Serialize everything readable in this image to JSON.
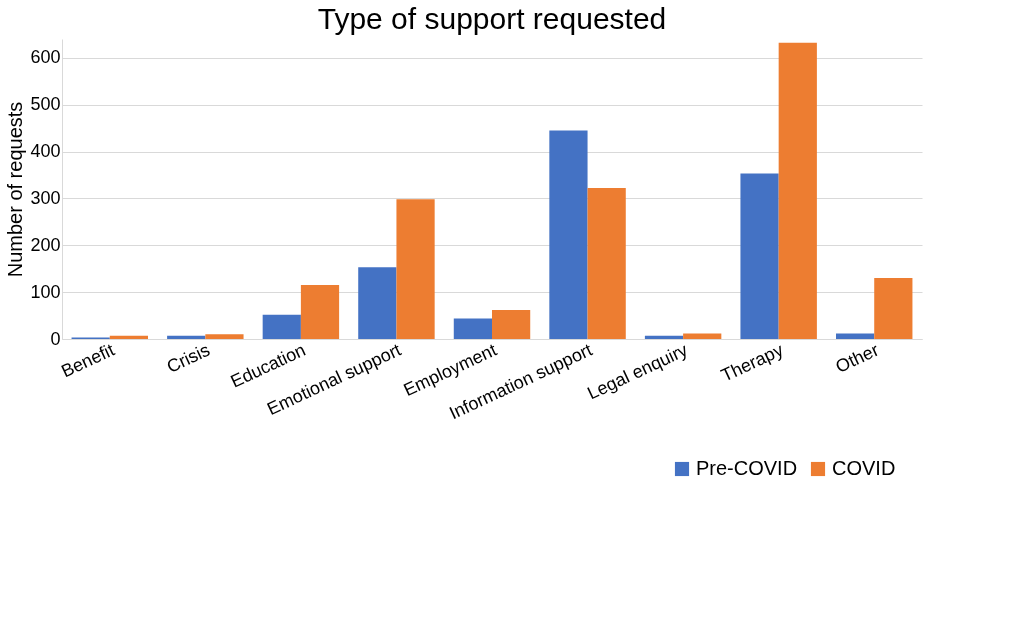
{
  "chart_data": {
    "type": "bar",
    "title": "Type of support requested",
    "ylabel": "Number of requests",
    "categories": [
      "Benefit",
      "Crisis",
      "Education",
      "Emotional support",
      "Employment",
      "Information support",
      "Legal enquiry",
      "Therapy",
      "Other"
    ],
    "series": [
      {
        "name": "Pre-COVID",
        "color": "#4472c4",
        "values": [
          3,
          7,
          52,
          153,
          44,
          445,
          7,
          353,
          12
        ]
      },
      {
        "name": "COVID",
        "color": "#ed7d31",
        "values": [
          7,
          10,
          115,
          298,
          62,
          322,
          12,
          632,
          130
        ]
      }
    ],
    "ylim": [
      0,
      640
    ],
    "yticks": [
      0,
      100,
      200,
      300,
      400,
      500,
      600
    ],
    "grid": "y",
    "legend": "bottom right"
  }
}
